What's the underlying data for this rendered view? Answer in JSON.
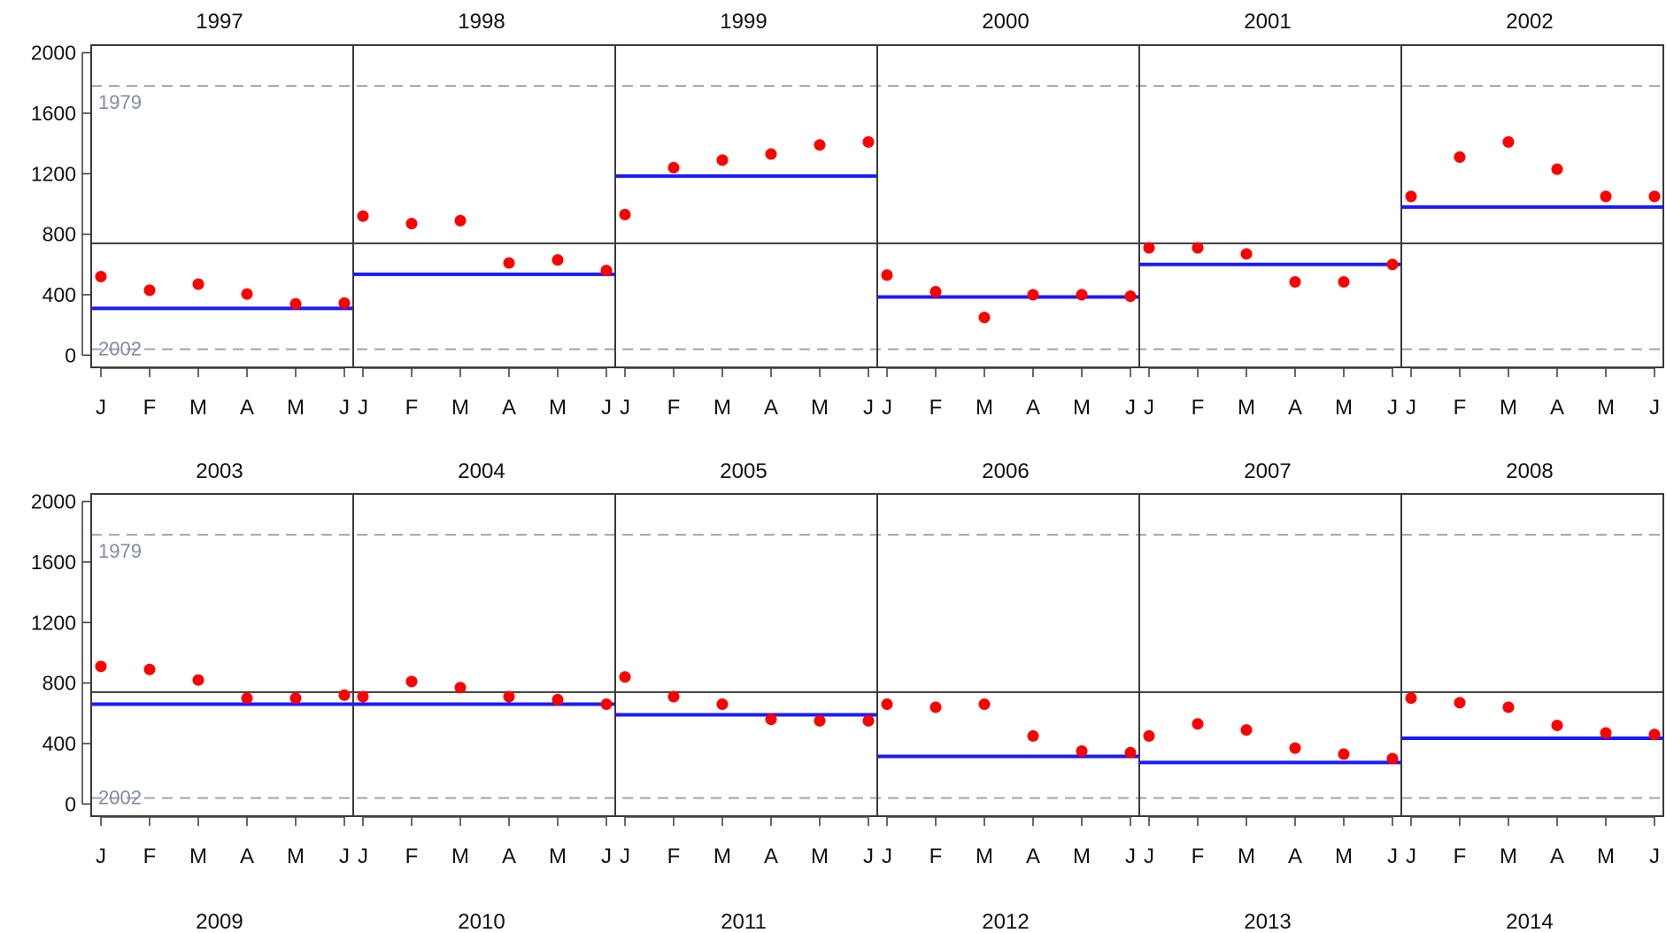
{
  "chart_data": {
    "type": "scatter",
    "layout": "small-multiples",
    "months": [
      "J",
      "F",
      "M",
      "A",
      "M",
      "J"
    ],
    "yticks": [
      0,
      400,
      800,
      1200,
      1600,
      2000
    ],
    "ylim": [
      -80,
      2050
    ],
    "reference_lines": [
      {
        "label": "1979",
        "value": 1780
      },
      {
        "label": "2002",
        "value": 40
      }
    ],
    "midline_value": 740,
    "colors": {
      "points": "#ff0000",
      "average": "#1a1aff",
      "reference": "#9aa6b8",
      "frame": "#3a3a3a"
    },
    "rows": [
      {
        "panels": [
          {
            "title": "1997",
            "values": [
              520,
              430,
              470,
              405,
              340,
              345
            ],
            "average": 310
          },
          {
            "title": "1998",
            "values": [
              920,
              870,
              890,
              610,
              630,
              560
            ],
            "average": 535
          },
          {
            "title": "1999",
            "values": [
              930,
              1240,
              1290,
              1330,
              1390,
              1410
            ],
            "average": 1185
          },
          {
            "title": "2000",
            "values": [
              530,
              420,
              250,
              400,
              400,
              390
            ],
            "average": 385
          },
          {
            "title": "2001",
            "values": [
              710,
              710,
              670,
              485,
              485,
              600
            ],
            "average": 600
          },
          {
            "title": "2002",
            "values": [
              1050,
              1310,
              1410,
              1230,
              1050,
              1050
            ],
            "average": 980
          }
        ]
      },
      {
        "panels": [
          {
            "title": "2003",
            "values": [
              910,
              890,
              820,
              700,
              700,
              720
            ],
            "average": 660
          },
          {
            "title": "2004",
            "values": [
              710,
              810,
              770,
              710,
              690,
              660
            ],
            "average": 660
          },
          {
            "title": "2005",
            "values": [
              840,
              710,
              660,
              560,
              550,
              550
            ],
            "average": 590
          },
          {
            "title": "2006",
            "values": [
              660,
              640,
              660,
              450,
              350,
              340
            ],
            "average": 315
          },
          {
            "title": "2007",
            "values": [
              450,
              530,
              490,
              370,
              330,
              300
            ],
            "average": 275
          },
          {
            "title": "2008",
            "values": [
              700,
              670,
              640,
              520,
              470,
              460
            ],
            "average": 435
          }
        ]
      },
      {
        "panels": [
          {
            "title": "2009"
          },
          {
            "title": "2010"
          },
          {
            "title": "2011"
          },
          {
            "title": "2012"
          },
          {
            "title": "2013"
          },
          {
            "title": "2014"
          }
        ]
      }
    ]
  }
}
